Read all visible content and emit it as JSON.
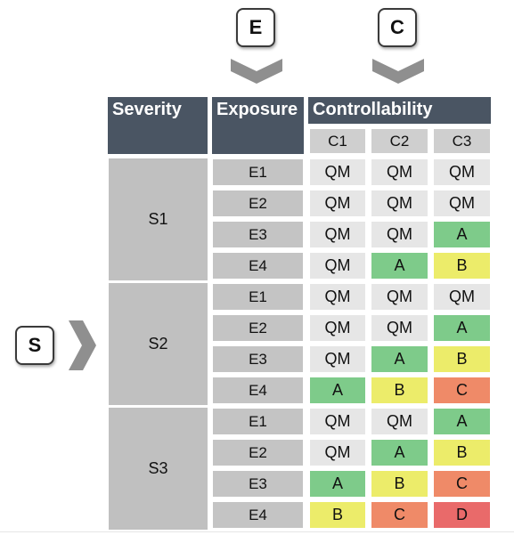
{
  "axes_keys": {
    "exposure": "E",
    "controllability": "C",
    "severity": "S"
  },
  "headers": {
    "severity": "Severity",
    "exposure": "Exposure",
    "controllability": "Controllability"
  },
  "controllability_levels": [
    "C1",
    "C2",
    "C3"
  ],
  "groups": [
    {
      "severity": "S1",
      "rows": [
        {
          "exposure": "E1",
          "values": [
            "QM",
            "QM",
            "QM"
          ]
        },
        {
          "exposure": "E2",
          "values": [
            "QM",
            "QM",
            "QM"
          ]
        },
        {
          "exposure": "E3",
          "values": [
            "QM",
            "QM",
            "A"
          ]
        },
        {
          "exposure": "E4",
          "values": [
            "QM",
            "A",
            "B"
          ]
        }
      ]
    },
    {
      "severity": "S2",
      "rows": [
        {
          "exposure": "E1",
          "values": [
            "QM",
            "QM",
            "QM"
          ]
        },
        {
          "exposure": "E2",
          "values": [
            "QM",
            "QM",
            "A"
          ]
        },
        {
          "exposure": "E3",
          "values": [
            "QM",
            "A",
            "B"
          ]
        },
        {
          "exposure": "E4",
          "values": [
            "A",
            "B",
            "C"
          ]
        }
      ]
    },
    {
      "severity": "S3",
      "rows": [
        {
          "exposure": "E1",
          "values": [
            "QM",
            "QM",
            "A"
          ]
        },
        {
          "exposure": "E2",
          "values": [
            "QM",
            "A",
            "B"
          ]
        },
        {
          "exposure": "E3",
          "values": [
            "A",
            "B",
            "C"
          ]
        },
        {
          "exposure": "E4",
          "values": [
            "B",
            "C",
            "D"
          ]
        }
      ]
    }
  ],
  "level_colors": {
    "QM": "#e6e6e6",
    "A": "#7ecb8a",
    "B": "#ecec6a",
    "C": "#ef8a68",
    "D": "#e96a6a"
  },
  "header_color": "#4a5563"
}
